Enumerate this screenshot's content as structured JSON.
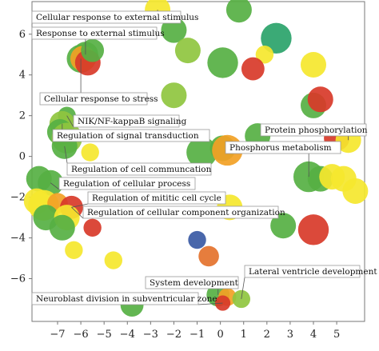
{
  "chart_data": {
    "type": "scatter",
    "title": "",
    "xlabel": "",
    "ylabel": "",
    "xlim": [
      -8.1,
      6.2
    ],
    "ylim": [
      -8.1,
      7.6
    ],
    "xticks": [
      -7,
      -6,
      -5,
      -4,
      -3,
      -2,
      -1,
      0,
      1,
      2,
      3,
      4,
      5
    ],
    "yticks": [
      6,
      4,
      2,
      0,
      -2,
      -4,
      -6
    ],
    "xtick_labels": [
      "−7",
      "−6",
      "−5",
      "−4",
      "−3",
      "−2",
      "−1",
      "0",
      "1",
      "2",
      "3",
      "4",
      "5"
    ],
    "ytick_labels": [
      "6",
      "4",
      "2",
      "0",
      "−2",
      "−4",
      "−6"
    ],
    "grid": false,
    "colors": {
      "green": "#56b043",
      "lightgreen": "#8fc63f",
      "yellow": "#f5e72e",
      "orange": "#f2a125",
      "darkorange": "#e4722c",
      "red": "#d83a29",
      "blue": "#3a5aa4",
      "teal": "#2aa36a"
    },
    "points": [
      {
        "x": -2.7,
        "y": 7.2,
        "size": 1.0,
        "color": "yellow"
      },
      {
        "x": -2.0,
        "y": 6.2,
        "size": 1.0,
        "color": "green"
      },
      {
        "x": 0.8,
        "y": 7.2,
        "size": 1.0,
        "color": "green"
      },
      {
        "x": 2.4,
        "y": 5.8,
        "size": 1.2,
        "color": "teal"
      },
      {
        "x": -1.4,
        "y": 5.2,
        "size": 1.0,
        "color": "lightgreen"
      },
      {
        "x": -5.8,
        "y": 5.0,
        "size": 1.0,
        "color": "green"
      },
      {
        "x": -6.0,
        "y": 4.8,
        "size": 1.1,
        "color": "green"
      },
      {
        "x": -5.9,
        "y": 4.8,
        "size": 1.0,
        "color": "orange"
      },
      {
        "x": -5.7,
        "y": 4.6,
        "size": 1.0,
        "color": "red"
      },
      {
        "x": -5.5,
        "y": 5.2,
        "size": 0.9,
        "color": "green"
      },
      {
        "x": 0.1,
        "y": 4.6,
        "size": 1.2,
        "color": "green"
      },
      {
        "x": 1.9,
        "y": 5.0,
        "size": 0.7,
        "color": "yellow"
      },
      {
        "x": 1.4,
        "y": 4.3,
        "size": 0.9,
        "color": "red"
      },
      {
        "x": 4.0,
        "y": 4.5,
        "size": 1.0,
        "color": "yellow"
      },
      {
        "x": -2.0,
        "y": 3.0,
        "size": 1.0,
        "color": "lightgreen"
      },
      {
        "x": 4.0,
        "y": 2.5,
        "size": 1.0,
        "color": "green"
      },
      {
        "x": 4.3,
        "y": 2.8,
        "size": 1.0,
        "color": "red"
      },
      {
        "x": -6.6,
        "y": 2.0,
        "size": 0.7,
        "color": "green"
      },
      {
        "x": -6.8,
        "y": 1.6,
        "size": 1.0,
        "color": "lightgreen"
      },
      {
        "x": -6.9,
        "y": 1.2,
        "size": 1.0,
        "color": "green"
      },
      {
        "x": -6.6,
        "y": 0.9,
        "size": 1.2,
        "color": "lightgreen"
      },
      {
        "x": -6.7,
        "y": 0.5,
        "size": 1.0,
        "color": "green"
      },
      {
        "x": -5.6,
        "y": 0.2,
        "size": 0.7,
        "color": "yellow"
      },
      {
        "x": -0.8,
        "y": 0.2,
        "size": 1.2,
        "color": "green"
      },
      {
        "x": 0.1,
        "y": 0.4,
        "size": 1.0,
        "color": "green"
      },
      {
        "x": 0.3,
        "y": 0.3,
        "size": 1.2,
        "color": "orange"
      },
      {
        "x": 1.6,
        "y": 1.0,
        "size": 1.0,
        "color": "green"
      },
      {
        "x": 5.0,
        "y": 0.9,
        "size": 1.0,
        "color": "red"
      },
      {
        "x": 5.5,
        "y": 0.8,
        "size": 1.0,
        "color": "yellow"
      },
      {
        "x": 3.8,
        "y": -1.0,
        "size": 1.2,
        "color": "green"
      },
      {
        "x": 4.3,
        "y": -1.1,
        "size": 1.0,
        "color": "green"
      },
      {
        "x": 4.8,
        "y": -1.0,
        "size": 1.0,
        "color": "yellow"
      },
      {
        "x": 5.3,
        "y": -1.1,
        "size": 1.0,
        "color": "yellow"
      },
      {
        "x": 5.8,
        "y": -1.7,
        "size": 1.0,
        "color": "yellow"
      },
      {
        "x": -7.8,
        "y": -1.1,
        "size": 1.0,
        "color": "green"
      },
      {
        "x": -7.3,
        "y": -1.3,
        "size": 1.0,
        "color": "green"
      },
      {
        "x": -7.9,
        "y": -2.2,
        "size": 1.0,
        "color": "yellow"
      },
      {
        "x": -7.6,
        "y": -2.4,
        "size": 1.2,
        "color": "yellow"
      },
      {
        "x": -7.0,
        "y": -2.3,
        "size": 0.8,
        "color": "orange"
      },
      {
        "x": -6.4,
        "y": -2.5,
        "size": 0.9,
        "color": "red"
      },
      {
        "x": -7.5,
        "y": -3.0,
        "size": 1.0,
        "color": "green"
      },
      {
        "x": -6.6,
        "y": -3.0,
        "size": 1.0,
        "color": "yellow"
      },
      {
        "x": -6.8,
        "y": -3.5,
        "size": 1.0,
        "color": "green"
      },
      {
        "x": -5.5,
        "y": -3.5,
        "size": 0.7,
        "color": "red"
      },
      {
        "x": 0.4,
        "y": -2.5,
        "size": 1.0,
        "color": "yellow"
      },
      {
        "x": 2.7,
        "y": -3.4,
        "size": 1.0,
        "color": "green"
      },
      {
        "x": 4.0,
        "y": -3.6,
        "size": 1.2,
        "color": "red"
      },
      {
        "x": -1.0,
        "y": -4.1,
        "size": 0.7,
        "color": "blue"
      },
      {
        "x": -6.3,
        "y": -4.6,
        "size": 0.7,
        "color": "yellow"
      },
      {
        "x": -0.5,
        "y": -4.9,
        "size": 0.8,
        "color": "darkorange"
      },
      {
        "x": -4.6,
        "y": -5.1,
        "size": 0.7,
        "color": "yellow"
      },
      {
        "x": -0.1,
        "y": -6.8,
        "size": 0.9,
        "color": "green"
      },
      {
        "x": 0.3,
        "y": -6.9,
        "size": 0.7,
        "color": "orange"
      },
      {
        "x": 0.9,
        "y": -7.0,
        "size": 0.7,
        "color": "lightgreen"
      },
      {
        "x": 0.1,
        "y": -7.2,
        "size": 0.6,
        "color": "red"
      },
      {
        "x": -3.8,
        "y": -7.3,
        "size": 0.9,
        "color": "green"
      }
    ],
    "annotations": [
      {
        "text": "Cellular response to external stimulus",
        "x": -2.7,
        "y": 7.2
      },
      {
        "text": "Response to external stimulus",
        "x": -5.8,
        "y": 5.0
      },
      {
        "text": "Cellular response to stress",
        "x": -6.0,
        "y": 4.8
      },
      {
        "text": "NIK/NF-kappaB signaling",
        "x": -6.6,
        "y": 2.0
      },
      {
        "text": "Regulation of signal transduction",
        "x": -6.8,
        "y": 1.6
      },
      {
        "text": "Protein phosphorylation",
        "x": 5.5,
        "y": 0.8
      },
      {
        "text": "Phosphorus metabolism",
        "x": 3.8,
        "y": -1.0
      },
      {
        "text": "Regulation of cell communcation",
        "x": -6.7,
        "y": 0.5
      },
      {
        "text": "Regulation of cellular process",
        "x": -7.3,
        "y": -1.3
      },
      {
        "text": "Regulation of mititic cell cycle",
        "x": -6.4,
        "y": -2.5
      },
      {
        "text": "Regulation of cellular component organization",
        "x": -6.4,
        "y": -2.5
      },
      {
        "text": "Lateral ventricle development",
        "x": 0.9,
        "y": -7.0
      },
      {
        "text": "System development",
        "x": -0.1,
        "y": -6.8
      },
      {
        "text": "Neuroblast division in subventricular zone",
        "x": 0.1,
        "y": -7.2
      }
    ]
  }
}
